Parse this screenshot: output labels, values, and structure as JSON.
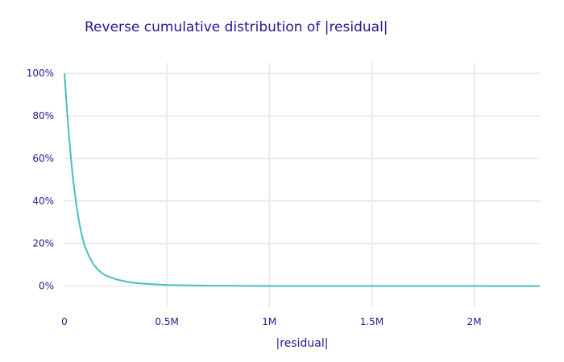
{
  "chart_data": {
    "type": "line",
    "title": "Reverse cumulative distribution of |residual|",
    "xlabel": "|residual|",
    "ylabel": "",
    "xlim": [
      0,
      2320000
    ],
    "ylim": [
      -0.1,
      1.05
    ],
    "x_ticks": [
      {
        "value": 0,
        "label": "0"
      },
      {
        "value": 500000,
        "label": "0.5M"
      },
      {
        "value": 1000000,
        "label": "1M"
      },
      {
        "value": 1500000,
        "label": "1.5M"
      },
      {
        "value": 2000000,
        "label": "2M"
      }
    ],
    "y_ticks": [
      {
        "value": 0,
        "label": "0%"
      },
      {
        "value": 0.2,
        "label": "20%"
      },
      {
        "value": 0.4,
        "label": "40%"
      },
      {
        "value": 0.6,
        "label": "60%"
      },
      {
        "value": 0.8,
        "label": "80%"
      },
      {
        "value": 1.0,
        "label": "100%"
      }
    ],
    "grid": true,
    "series": [
      {
        "name": "",
        "color": "#46bfbd",
        "points": [
          [
            0,
            1.0
          ],
          [
            10000,
            0.86
          ],
          [
            20000,
            0.73
          ],
          [
            30000,
            0.62
          ],
          [
            40000,
            0.52
          ],
          [
            50000,
            0.44
          ],
          [
            60000,
            0.37
          ],
          [
            70000,
            0.31
          ],
          [
            80000,
            0.26
          ],
          [
            90000,
            0.22
          ],
          [
            100000,
            0.185
          ],
          [
            120000,
            0.14
          ],
          [
            140000,
            0.105
          ],
          [
            160000,
            0.08
          ],
          [
            180000,
            0.063
          ],
          [
            200000,
            0.05
          ],
          [
            250000,
            0.032
          ],
          [
            300000,
            0.021
          ],
          [
            350000,
            0.014
          ],
          [
            400000,
            0.01
          ],
          [
            500000,
            0.005
          ],
          [
            600000,
            0.003
          ],
          [
            700000,
            0.0018
          ],
          [
            800000,
            0.001
          ],
          [
            1000000,
            0.0004
          ],
          [
            1500000,
            0.0001
          ],
          [
            2000000,
            3e-05
          ],
          [
            2320000,
            0.0
          ]
        ]
      }
    ]
  },
  "colors": {
    "text": "#2a168f",
    "grid": "#ebebeb",
    "background": "#ffffff"
  }
}
